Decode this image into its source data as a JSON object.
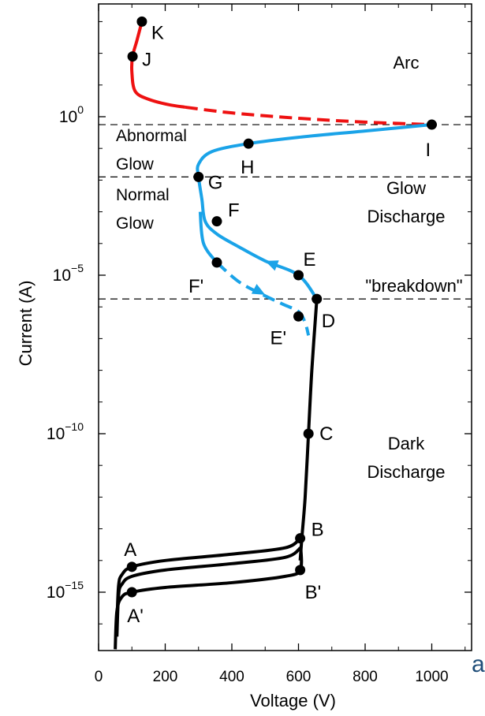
{
  "chart_data": {
    "type": "line",
    "xlabel": "Voltage  (V)",
    "ylabel": "Current  (A)",
    "x_ticks": [
      "0",
      "200",
      "400",
      "600",
      "800",
      "1000"
    ],
    "y_ticks": [
      {
        "base": "10",
        "exp": "0",
        "log": 0
      },
      {
        "base": "10",
        "exp": "−5",
        "log": -5
      },
      {
        "base": "10",
        "exp": "−10",
        "log": -10
      },
      {
        "base": "10",
        "exp": "−15",
        "log": -15
      }
    ],
    "xlim": [
      0,
      1150
    ],
    "ylim_log10": [
      -17,
      3.5
    ],
    "y_scale": "log",
    "colors": {
      "arc": "#ee1111",
      "glow": "#1aa3e8",
      "dark": "#000000"
    },
    "reference_lines_log10": [
      -0.25,
      -1.9,
      -5.75
    ],
    "regions": [
      {
        "key": "arc",
        "lines": [
          "Arc"
        ]
      },
      {
        "key": "abnormal",
        "lines": [
          "Abnormal",
          "Glow"
        ]
      },
      {
        "key": "normal",
        "lines": [
          "Normal",
          "Glow"
        ]
      },
      {
        "key": "glow",
        "lines": [
          "Glow",
          "Discharge"
        ]
      },
      {
        "key": "breakdown",
        "lines": [
          "\"breakdown\""
        ]
      },
      {
        "key": "dark",
        "lines": [
          "Dark",
          "Discharge"
        ]
      }
    ],
    "series": [
      {
        "key": "arc_solid",
        "color": "arc",
        "style": "solid",
        "points": [
          [
            130,
            3.0
          ],
          [
            115,
            2.4
          ],
          [
            102,
            1.9
          ],
          [
            100,
            1.4
          ],
          [
            110,
            0.8
          ],
          [
            150,
            0.55
          ],
          [
            210,
            0.38
          ],
          [
            260,
            0.3
          ]
        ]
      },
      {
        "key": "arc_dashed",
        "color": "arc",
        "style": "dashed",
        "points": [
          [
            260,
            0.3
          ],
          [
            400,
            0.12
          ],
          [
            600,
            -0.05
          ],
          [
            800,
            -0.17
          ],
          [
            1000,
            -0.25
          ]
        ]
      },
      {
        "key": "glow_upper",
        "color": "glow",
        "style": "solid",
        "points": [
          [
            1000,
            -0.25
          ],
          [
            800,
            -0.45
          ],
          [
            600,
            -0.65
          ],
          [
            450,
            -0.85
          ],
          [
            340,
            -1.1
          ],
          [
            300,
            -1.5
          ],
          [
            300,
            -1.9
          ],
          [
            310,
            -2.6
          ],
          [
            320,
            -3.3
          ],
          [
            355,
            -3.7
          ],
          [
            420,
            -4.1
          ],
          [
            500,
            -4.55
          ],
          [
            600,
            -5.0
          ],
          [
            655,
            -5.75
          ]
        ]
      },
      {
        "key": "glow_lower",
        "color": "glow",
        "style": "dashed",
        "points": [
          [
            355,
            -4.6
          ],
          [
            420,
            -5.2
          ],
          [
            490,
            -5.6
          ],
          [
            550,
            -5.9
          ],
          [
            600,
            -6.15
          ],
          [
            620,
            -6.5
          ],
          [
            630,
            -6.9
          ]
        ]
      },
      {
        "key": "glow_lower_stub",
        "color": "glow",
        "style": "solid",
        "points": [
          [
            305,
            -3.0
          ],
          [
            315,
            -4.0
          ],
          [
            355,
            -4.6
          ]
        ]
      },
      {
        "key": "dark_vertical",
        "color": "dark",
        "style": "solid",
        "points": [
          [
            655,
            -5.75
          ],
          [
            640,
            -8.0
          ],
          [
            630,
            -10.0
          ],
          [
            620,
            -12.0
          ],
          [
            610,
            -13.3
          ],
          [
            605,
            -14.0
          ]
        ]
      },
      {
        "key": "dark_A",
        "color": "dark",
        "style": "solid",
        "points": [
          [
            55,
            -16.0
          ],
          [
            60,
            -14.8
          ],
          [
            70,
            -14.45
          ],
          [
            100,
            -14.2
          ],
          [
            200,
            -14.0
          ],
          [
            400,
            -13.8
          ],
          [
            560,
            -13.6
          ],
          [
            605,
            -13.3
          ]
        ]
      },
      {
        "key": "dark_mid",
        "color": "dark",
        "style": "solid",
        "points": [
          [
            55,
            -16.4
          ],
          [
            60,
            -15.1
          ],
          [
            70,
            -14.75
          ],
          [
            100,
            -14.5
          ],
          [
            200,
            -14.3
          ],
          [
            400,
            -14.1
          ],
          [
            560,
            -13.9
          ],
          [
            606,
            -13.6
          ]
        ]
      },
      {
        "key": "dark_Aprime",
        "color": "dark",
        "style": "solid",
        "points": [
          [
            50,
            -16.8
          ],
          [
            55,
            -15.6
          ],
          [
            70,
            -15.15
          ],
          [
            100,
            -15.0
          ],
          [
            200,
            -14.85
          ],
          [
            400,
            -14.7
          ],
          [
            560,
            -14.5
          ],
          [
            605,
            -14.3
          ],
          [
            607,
            -13.6
          ]
        ]
      }
    ],
    "points": [
      {
        "label": "K",
        "x": 130,
        "y": 3.0,
        "lx": 12,
        "ly": 22
      },
      {
        "label": "J",
        "x": 102,
        "y": 1.9,
        "lx": 12,
        "ly": 12
      },
      {
        "label": "I",
        "x": 1000,
        "y": -0.25,
        "lx": -8,
        "ly": 40
      },
      {
        "label": "H",
        "x": 450,
        "y": -0.85,
        "lx": -10,
        "ly": 38
      },
      {
        "label": "G",
        "x": 300,
        "y": -1.9,
        "lx": 12,
        "ly": 15
      },
      {
        "label": "F",
        "x": 355,
        "y": -3.3,
        "lx": 14,
        "ly": -6
      },
      {
        "label": "F'",
        "x": 355,
        "y": -4.6,
        "lx": -36,
        "ly": 38
      },
      {
        "label": "E",
        "x": 600,
        "y": -5.0,
        "lx": 6,
        "ly": -12
      },
      {
        "label": "E'",
        "x": 600,
        "y": -6.3,
        "lx": -36,
        "ly": 35
      },
      {
        "label": "D",
        "x": 655,
        "y": -5.75,
        "lx": 6,
        "ly": 36
      },
      {
        "label": "C",
        "x": 630,
        "y": -10.0,
        "lx": 14,
        "ly": 8
      },
      {
        "label": "B",
        "x": 605,
        "y": -13.3,
        "lx": 14,
        "ly": -3
      },
      {
        "label": "B'",
        "x": 605,
        "y": -14.3,
        "lx": 6,
        "ly": 36
      },
      {
        "label": "A",
        "x": 100,
        "y": -14.2,
        "lx": -10,
        "ly": -14
      },
      {
        "label": "A'",
        "x": 100,
        "y": -15.0,
        "lx": -6,
        "ly": 38
      }
    ],
    "arrows": [
      {
        "x1": 560,
        "y1": -4.8,
        "x2": 500,
        "y2": -4.55
      },
      {
        "x1": 440,
        "y1": -5.28,
        "x2": 500,
        "y2": -5.62
      }
    ]
  },
  "cropped_text": "ar"
}
